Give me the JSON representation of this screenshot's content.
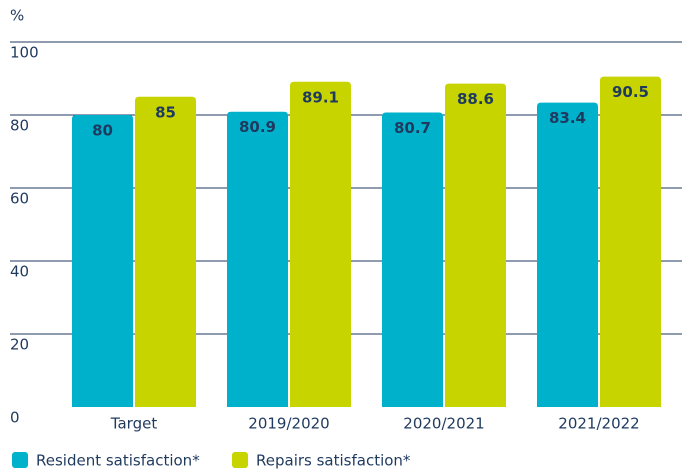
{
  "chart_data": {
    "type": "bar",
    "y_label": "%",
    "categories": [
      "Target",
      "2019/2020",
      "2020/2021",
      "2021/2022"
    ],
    "series": [
      {
        "name": "Resident satisfaction*",
        "color": "#00b1cc",
        "values": [
          80,
          80.9,
          80.7,
          83.4
        ]
      },
      {
        "name": "Repairs satisfaction*",
        "color": "#c8d400",
        "values": [
          85,
          89.1,
          88.6,
          90.5
        ]
      }
    ],
    "ylim": [
      0,
      100
    ],
    "yticks": [
      0,
      20,
      40,
      60,
      80,
      100
    ],
    "grid": true,
    "legend": "bottom-left"
  }
}
